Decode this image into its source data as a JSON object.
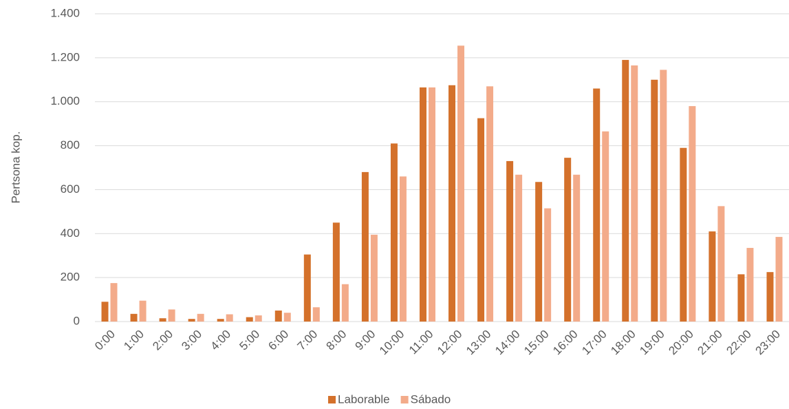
{
  "chart_data": {
    "type": "bar",
    "y_label": "Pertsona kop.",
    "categories": [
      "0:00",
      "1:00",
      "2:00",
      "3:00",
      "4:00",
      "5:00",
      "6:00",
      "7:00",
      "8:00",
      "9:00",
      "10:00",
      "11:00",
      "12:00",
      "13:00",
      "14:00",
      "15:00",
      "16:00",
      "17:00",
      "18:00",
      "19:00",
      "20:00",
      "21:00",
      "22:00",
      "23:00"
    ],
    "series": [
      {
        "name": "Laborable",
        "color": "#d4712b",
        "values": [
          90,
          35,
          15,
          12,
          12,
          20,
          50,
          305,
          450,
          680,
          810,
          1065,
          1075,
          925,
          730,
          635,
          745,
          1060,
          1190,
          1100,
          790,
          410,
          215,
          225
        ]
      },
      {
        "name": "Sábado",
        "color": "#f3ab8a",
        "values": [
          175,
          95,
          55,
          35,
          33,
          28,
          40,
          65,
          170,
          395,
          660,
          1065,
          1255,
          1070,
          668,
          515,
          668,
          865,
          1165,
          1145,
          980,
          525,
          335,
          385
        ]
      }
    ],
    "ylim": [
      0,
      1400
    ],
    "yticks": [
      0,
      200,
      400,
      600,
      800,
      {
        "value": 1000,
        "label": "1.000"
      },
      {
        "value": 1200,
        "label": "1.200"
      },
      {
        "value": 1400,
        "label": "1.400"
      }
    ],
    "grid": true,
    "legend": "bottom"
  }
}
